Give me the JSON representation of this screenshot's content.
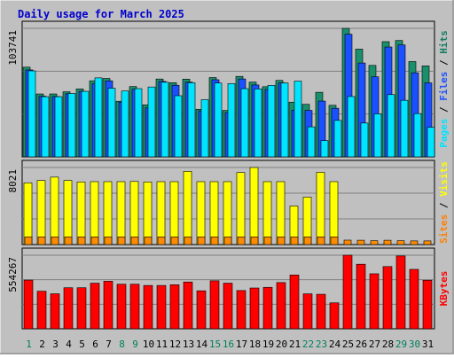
{
  "chart_data": {
    "type": "bar",
    "title": "Daily usage for March 2025",
    "categories": [
      "1",
      "2",
      "3",
      "4",
      "5",
      "6",
      "7",
      "8",
      "9",
      "10",
      "11",
      "12",
      "13",
      "14",
      "15",
      "16",
      "17",
      "18",
      "19",
      "20",
      "21",
      "22",
      "23",
      "24",
      "25",
      "26",
      "27",
      "28",
      "29",
      "30",
      "31"
    ],
    "day_colors": [
      "#00805c",
      "#000000",
      "#000000",
      "#000000",
      "#000000",
      "#000000",
      "#000000",
      "#00805c",
      "#00805c",
      "#000000",
      "#000000",
      "#000000",
      "#000000",
      "#000000",
      "#00805c",
      "#00805c",
      "#000000",
      "#000000",
      "#000000",
      "#000000",
      "#000000",
      "#00805c",
      "#00805c",
      "#000000",
      "#000000",
      "#000000",
      "#000000",
      "#000000",
      "#00805c",
      "#00805c",
      "#000000"
    ],
    "panels": [
      {
        "max_label": "103741",
        "axis_label_parts": [
          {
            "text": "Pages",
            "color": "#00e3ff"
          },
          {
            "text": " / ",
            "color": "#000000"
          },
          {
            "text": "Files",
            "color": "#1e50ff"
          },
          {
            "text": " / ",
            "color": "#000000"
          },
          {
            "text": "Hits",
            "color": "#147d64"
          }
        ],
        "series": [
          {
            "name": "Hits",
            "color": "#1a8f6c",
            "values": [
              70590,
              49520,
              49520,
              51240,
              53490,
              59880,
              61720,
              43800,
              55330,
              40960,
              61270,
              58400,
              61190,
              37480,
              62420,
              36530,
              63340,
              58820,
              55230,
              60190,
              43070,
              41350,
              50830,
              40580,
              101160,
              84820,
              72000,
              90690,
              91600,
              75020,
              71620
            ]
          },
          {
            "name": "Files",
            "color": "#1a50ff",
            "values": [
              68420,
              47730,
              47530,
              49680,
              51540,
              57640,
              59830,
              43090,
              53190,
              38590,
              59390,
              56350,
              58830,
              36240,
              60700,
              34880,
              61330,
              56590,
              53090,
              58170,
              36710,
              36590,
              43920,
              38240,
              96560,
              73880,
              63000,
              86490,
              88100,
              66190,
              58230
            ]
          },
          {
            "name": "Pages",
            "color": "#00e5ff",
            "values": [
              67680,
              47370,
              47370,
              49870,
              51600,
              62180,
              54000,
              51850,
              53700,
              55000,
              58750,
              48130,
              58300,
              45000,
              58120,
              57680,
              53700,
              53520,
              56300,
              58120,
              59620,
              23640,
              12800,
              28700,
              47500,
              26620,
              33870,
              49000,
              44520,
              34060,
              23280
            ]
          }
        ]
      },
      {
        "max_label": "8021",
        "axis_label_parts": [
          {
            "text": "Sites",
            "color": "#ff8000"
          },
          {
            "text": " / ",
            "color": "#000000"
          },
          {
            "text": "Visits",
            "color": "#ffff00"
          }
        ],
        "series": [
          {
            "name": "Visits",
            "color": "#ffff00",
            "values": [
              6410,
              6650,
              7000,
              6650,
              6500,
              6530,
              6530,
              6530,
              6550,
              6500,
              6530,
              6530,
              7600,
              6530,
              6530,
              6530,
              7480,
              8000,
              6530,
              6530,
              4000,
              4930,
              7500,
              6530,
              0,
              0,
              0,
              0,
              0,
              0,
              0
            ]
          },
          {
            "name": "Sites",
            "color": "#ff8c00",
            "values": [
              800,
              800,
              800,
              800,
              800,
              800,
              800,
              800,
              800,
              800,
              800,
              800,
              800,
              800,
              800,
              800,
              800,
              800,
              800,
              800,
              800,
              800,
              800,
              800,
              460,
              450,
              400,
              450,
              400,
              380,
              380
            ]
          }
        ]
      },
      {
        "max_label": "554267",
        "axis_label_parts": [
          {
            "text": "KBytes",
            "color": "#ff0000"
          }
        ],
        "series": [
          {
            "name": "KBytes",
            "color": "#ff0000",
            "values": [
              366600,
              282900,
              263550,
              309050,
              309050,
              343460,
              358000,
              335600,
              335600,
              326370,
              326370,
              331680,
              352380,
              286000,
              361470,
              343700,
              288000,
              307050,
              312100,
              348100,
              405120,
              263260,
              260000,
              195260,
              554267,
              486260,
              414300,
              468820,
              548500,
              447500,
              365600
            ]
          }
        ]
      }
    ]
  }
}
